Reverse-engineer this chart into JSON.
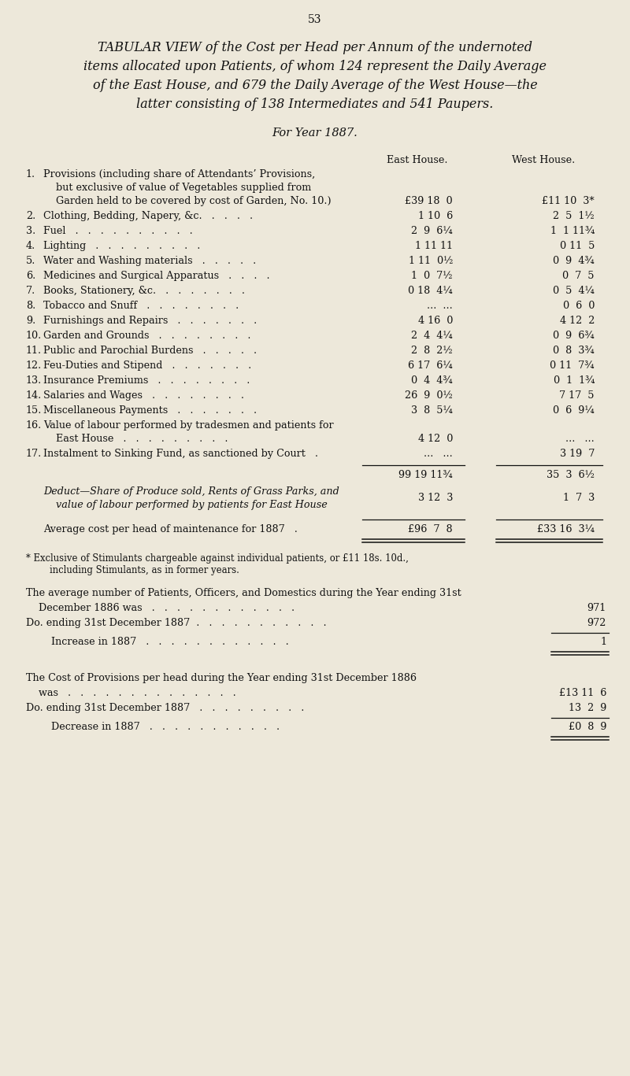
{
  "page_number": "53",
  "bg_color": "#ede8da",
  "text_color": "#111111",
  "title_line1": "TABULAR VIEW of the Cost per Head per Annum of the undernoted",
  "title_line2": "items allocated upon Patients, of whom 124 represent the Daily Average",
  "title_line3": "of the East House, and 679 the Daily Average of the West House—the",
  "title_line4": "latter consisting of 138 Intermediates and 541 Paupers.",
  "subtitle": "For Year 1887.",
  "col_header_east": "East House.",
  "col_header_west": "West House.",
  "rows": [
    {
      "num": "1.",
      "label1": "Provisions (including share of Attendants’ Provisions,",
      "label2": "    but exclusive of value of Vegetables supplied from",
      "label3": "    Garden held to be covered by cost of Garden, No. 10.)",
      "east": "£39 18  0",
      "west": "£11 10  3*",
      "multiline": true
    },
    {
      "num": "2.",
      "label1": "Clothing, Bedding, Napery, &c.   .   .   .   .",
      "east": "1 10  6",
      "west": "2  5  1½",
      "multiline": false
    },
    {
      "num": "3.",
      "label1": "Fuel   .   .   .   .   .   .   .   .   .   .",
      "east": "2  9  6¼",
      "west": "1  1 11¾",
      "multiline": false
    },
    {
      "num": "4.",
      "label1": "Lighting   .   .   .   .   .   .   .   .   .",
      "east": "1 11 11",
      "west": "0 11  5",
      "multiline": false
    },
    {
      "num": "5.",
      "label1": "Water and Washing materials   .   .   .   .   .",
      "east": "1 11  0½",
      "west": "0  9  4¾",
      "multiline": false
    },
    {
      "num": "6.",
      "label1": "Medicines and Surgical Apparatus   .   .   .   .",
      "east": "1  0  7½",
      "west": "0  7  5",
      "multiline": false
    },
    {
      "num": "7.",
      "label1": "Books, Stationery, &c.   .   .   .   .   .   .   .",
      "east": "0 18  4¼",
      "west": "0  5  4¼",
      "multiline": false
    },
    {
      "num": "8.",
      "label1": "Tobacco and Snuff   .   .   .   .   .   .   .   .",
      "east": "...  ...",
      "west": "0  6  0",
      "multiline": false
    },
    {
      "num": "9.",
      "label1": "Furnishings and Repairs   .   .   .   .   .   .   .",
      "east": "4 16  0",
      "west": "4 12  2",
      "multiline": false
    },
    {
      "num": "10.",
      "label1": "Garden and Grounds   .   .   .   .   .   .   .   .",
      "east": "2  4  4¼",
      "west": "0  9  6¾",
      "multiline": false
    },
    {
      "num": "11.",
      "label1": "Public and Parochial Burdens   .   .   .   .   .",
      "east": "2  8  2½",
      "west": "0  8  3¾",
      "multiline": false
    },
    {
      "num": "12.",
      "label1": "Feu-Duties and Stipend   .   .   .   .   .   .   .",
      "east": "6 17  6¼",
      "west": "0 11  7¾",
      "multiline": false
    },
    {
      "num": "13.",
      "label1": "Insurance Premiums   .   .   .   .   .   .   .   .",
      "east": "0  4  4¾",
      "west": "0  1  1¾",
      "multiline": false
    },
    {
      "num": "14.",
      "label1": "Salaries and Wages   .   .   .   .   .   .   .   .",
      "east": "26  9  0½",
      "west": "7 17  5",
      "multiline": false
    },
    {
      "num": "15.",
      "label1": "Miscellaneous Payments   .   .   .   .   .   .   .",
      "east": "3  8  5¼",
      "west": "0  6  9¼",
      "multiline": false
    },
    {
      "num": "16.",
      "label1": "Value of labour performed by tradesmen and patients for",
      "label2": "    East House   .   .   .   .   .   .   .   .   .",
      "east": "4 12  0",
      "west": "...   ...",
      "multiline": true
    },
    {
      "num": "17.",
      "label1": "Instalment to Sinking Fund, as sanctioned by Court   .",
      "east": "...   ...",
      "west": "3 19  7",
      "multiline": false
    }
  ],
  "total_east": "99 19 11¾",
  "total_west": "35  3  6½",
  "deduct_label1": "Deduct—Share of Produce sold, Rents of Grass Parks, and",
  "deduct_label2": "    value of labour performed by patients for East House",
  "deduct_east": "3 12  3",
  "deduct_west": "1  7  3",
  "avg_label": "Average cost per head of maintenance for 1887   .",
  "avg_east": "£96  7  8",
  "avg_west": "£33 16  3¼",
  "footnote1": "* Exclusive of Stimulants chargeable against individual patients, or £11 18s. 10d.,",
  "footnote2": "        including Stimulants, as in former years.",
  "stat1a": "The average number of Patients, Officers, and Domestics during the Year ending 31st",
  "stat1b_label": "    December 1886 was   .   .   .   .   .   .   .   .   .   .   .   .",
  "stat1b_val": "971",
  "stat1c_label": "Do. ending 31st December 1887  .   .   .   .   .   .   .   .   .   .   .",
  "stat1c_val": "972",
  "stat1d_label": "        Increase in 1887   .   .   .   .   .   .   .   .   .   .   .   .",
  "stat1d_val": "1",
  "stat2a": "The Cost of Provisions per head during the Year ending 31st December 1886",
  "stat2b_label": "    was   .   .   .   .   .   .   .   .   .   .   .   .   .   .",
  "stat2b_val": "£13 11  6",
  "stat2c_label": "Do. ending 31st December 1887   .   .   .   .   .   .   .   .   .",
  "stat2c_val": "13  2  9",
  "stat2d_label": "        Decrease in 1887   .   .   .   .   .   .   .   .   .   .   .",
  "stat2d_val": "£0  8  9",
  "fs_title": 11.5,
  "fs_body": 10.0,
  "fs_small": 9.2
}
